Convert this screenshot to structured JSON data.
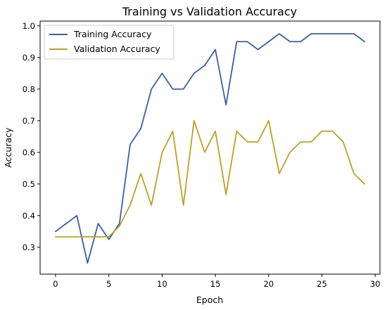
{
  "chart_data": {
    "type": "line",
    "title": "Training vs Validation Accuracy",
    "xlabel": "Epoch",
    "ylabel": "Accuracy",
    "xlim": [
      -1.45,
      30.45
    ],
    "ylim": [
      0.215,
      1.015
    ],
    "xticks": [
      0,
      5,
      10,
      15,
      20,
      25,
      30
    ],
    "yticks": [
      0.3,
      0.4,
      0.5,
      0.6,
      0.7,
      0.8,
      0.9,
      1.0
    ],
    "xtick_labels": [
      "0",
      "5",
      "10",
      "15",
      "20",
      "25",
      "30"
    ],
    "ytick_labels": [
      "0.3",
      "0.4",
      "0.5",
      "0.6",
      "0.7",
      "0.8",
      "0.9",
      "1.0"
    ],
    "grid": false,
    "legend_position": "top-left",
    "x": [
      0,
      1,
      2,
      3,
      4,
      5,
      6,
      7,
      8,
      9,
      10,
      11,
      12,
      13,
      14,
      15,
      16,
      17,
      18,
      19,
      20,
      21,
      22,
      23,
      24,
      25,
      26,
      27,
      28,
      29
    ],
    "series": [
      {
        "name": "Training Accuracy",
        "color": "#3a5fa8",
        "values": [
          0.35,
          0.375,
          0.4,
          0.25,
          0.375,
          0.325,
          0.375,
          0.625,
          0.675,
          0.8,
          0.85,
          0.8,
          0.8,
          0.85,
          0.875,
          0.925,
          0.75,
          0.95,
          0.95,
          0.925,
          0.95,
          0.975,
          0.95,
          0.95,
          0.975,
          0.975,
          0.975,
          0.975,
          0.975,
          0.95
        ]
      },
      {
        "name": "Validation Accuracy",
        "color": "#c0a020",
        "values": [
          0.333,
          0.333,
          0.333,
          0.333,
          0.333,
          0.333,
          0.367,
          0.433,
          0.533,
          0.433,
          0.6,
          0.667,
          0.433,
          0.7,
          0.6,
          0.667,
          0.467,
          0.667,
          0.633,
          0.633,
          0.7,
          0.533,
          0.6,
          0.633,
          0.633,
          0.667,
          0.667,
          0.633,
          0.533,
          0.5
        ]
      }
    ]
  }
}
